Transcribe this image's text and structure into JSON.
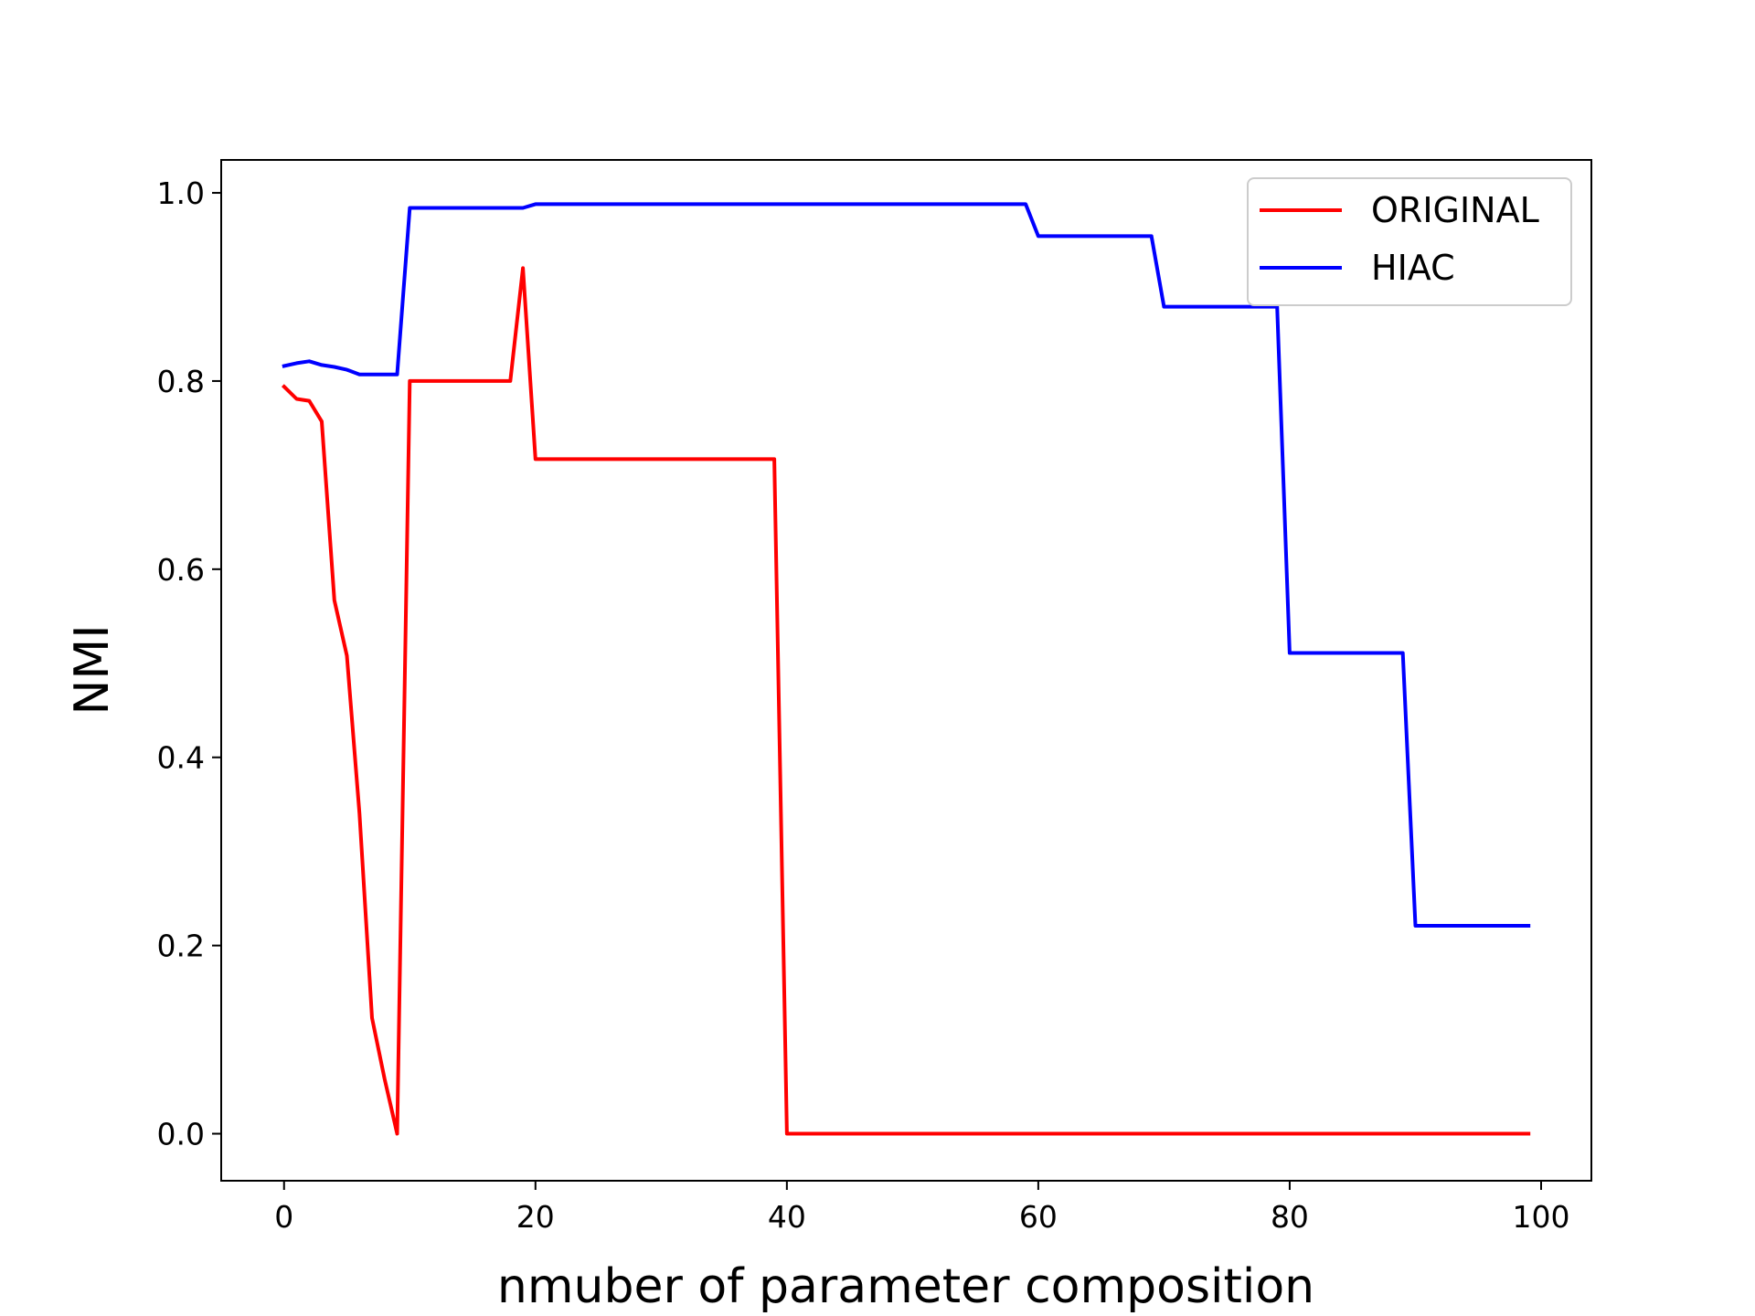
{
  "chart_data": {
    "type": "line",
    "title": "",
    "xlabel": "nmuber of parameter composition",
    "ylabel": "NMI",
    "xlim": [
      -5,
      104
    ],
    "ylim": [
      -0.05,
      1.035
    ],
    "xticks": [
      0,
      20,
      40,
      60,
      80,
      100
    ],
    "yticks": [
      0.0,
      0.2,
      0.4,
      0.6,
      0.8,
      1.0
    ],
    "xtick_labels": [
      "0",
      "20",
      "40",
      "60",
      "80",
      "100"
    ],
    "ytick_labels": [
      "0.0",
      "0.2",
      "0.4",
      "0.6",
      "0.8",
      "1.0"
    ],
    "grid": false,
    "legend_position": "top-right",
    "series": [
      {
        "name": "ORIGINAL",
        "color": "#ff0000",
        "x": [
          0,
          1,
          2,
          3,
          4,
          5,
          6,
          7,
          8,
          9,
          10,
          11,
          12,
          13,
          14,
          15,
          16,
          17,
          18,
          19,
          20,
          21,
          22,
          23,
          24,
          25,
          26,
          27,
          28,
          29,
          30,
          31,
          32,
          33,
          34,
          35,
          36,
          37,
          38,
          39,
          40,
          41,
          42,
          43,
          44,
          45,
          46,
          47,
          48,
          49,
          50,
          51,
          52,
          53,
          54,
          55,
          56,
          57,
          58,
          59,
          60,
          61,
          62,
          63,
          64,
          65,
          66,
          67,
          68,
          69,
          70,
          71,
          72,
          73,
          74,
          75,
          76,
          77,
          78,
          79,
          80,
          81,
          82,
          83,
          84,
          85,
          86,
          87,
          88,
          89,
          90,
          91,
          92,
          93,
          94,
          95,
          96,
          97,
          98,
          99
        ],
        "y": [
          0.794,
          0.781,
          0.779,
          0.757,
          0.567,
          0.508,
          0.34,
          0.123,
          0.058,
          0.0,
          0.8,
          0.8,
          0.8,
          0.8,
          0.8,
          0.8,
          0.8,
          0.8,
          0.8,
          0.92,
          0.717,
          0.717,
          0.717,
          0.717,
          0.717,
          0.717,
          0.717,
          0.717,
          0.717,
          0.717,
          0.717,
          0.717,
          0.717,
          0.717,
          0.717,
          0.717,
          0.717,
          0.717,
          0.717,
          0.717,
          0.0,
          0.0,
          0.0,
          0.0,
          0.0,
          0.0,
          0.0,
          0.0,
          0.0,
          0.0,
          0.0,
          0.0,
          0.0,
          0.0,
          0.0,
          0.0,
          0.0,
          0.0,
          0.0,
          0.0,
          0.0,
          0.0,
          0.0,
          0.0,
          0.0,
          0.0,
          0.0,
          0.0,
          0.0,
          0.0,
          0.0,
          0.0,
          0.0,
          0.0,
          0.0,
          0.0,
          0.0,
          0.0,
          0.0,
          0.0,
          0.0,
          0.0,
          0.0,
          0.0,
          0.0,
          0.0,
          0.0,
          0.0,
          0.0,
          0.0,
          0.0,
          0.0,
          0.0,
          0.0,
          0.0,
          0.0,
          0.0,
          0.0,
          0.0,
          0.0
        ]
      },
      {
        "name": "HIAC",
        "color": "#0000ff",
        "x": [
          0,
          1,
          2,
          3,
          4,
          5,
          6,
          7,
          8,
          9,
          10,
          11,
          12,
          13,
          14,
          15,
          16,
          17,
          18,
          19,
          20,
          21,
          22,
          23,
          24,
          25,
          26,
          27,
          28,
          29,
          30,
          31,
          32,
          33,
          34,
          35,
          36,
          37,
          38,
          39,
          40,
          41,
          42,
          43,
          44,
          45,
          46,
          47,
          48,
          49,
          50,
          51,
          52,
          53,
          54,
          55,
          56,
          57,
          58,
          59,
          60,
          61,
          62,
          63,
          64,
          65,
          66,
          67,
          68,
          69,
          70,
          71,
          72,
          73,
          74,
          75,
          76,
          77,
          78,
          79,
          80,
          81,
          82,
          83,
          84,
          85,
          86,
          87,
          88,
          89,
          90,
          91,
          92,
          93,
          94,
          95,
          96,
          97,
          98,
          99
        ],
        "y": [
          0.816,
          0.819,
          0.821,
          0.817,
          0.815,
          0.812,
          0.807,
          0.807,
          0.807,
          0.807,
          0.984,
          0.984,
          0.984,
          0.984,
          0.984,
          0.984,
          0.984,
          0.984,
          0.984,
          0.984,
          0.988,
          0.988,
          0.988,
          0.988,
          0.988,
          0.988,
          0.988,
          0.988,
          0.988,
          0.988,
          0.988,
          0.988,
          0.988,
          0.988,
          0.988,
          0.988,
          0.988,
          0.988,
          0.988,
          0.988,
          0.988,
          0.988,
          0.988,
          0.988,
          0.988,
          0.988,
          0.988,
          0.988,
          0.988,
          0.988,
          0.988,
          0.988,
          0.988,
          0.988,
          0.988,
          0.988,
          0.988,
          0.988,
          0.988,
          0.988,
          0.954,
          0.954,
          0.954,
          0.954,
          0.954,
          0.954,
          0.954,
          0.954,
          0.954,
          0.954,
          0.879,
          0.879,
          0.879,
          0.879,
          0.879,
          0.879,
          0.879,
          0.879,
          0.879,
          0.879,
          0.511,
          0.511,
          0.511,
          0.511,
          0.511,
          0.511,
          0.511,
          0.511,
          0.511,
          0.511,
          0.221,
          0.221,
          0.221,
          0.221,
          0.221,
          0.221,
          0.221,
          0.221,
          0.221,
          0.221
        ]
      }
    ]
  }
}
